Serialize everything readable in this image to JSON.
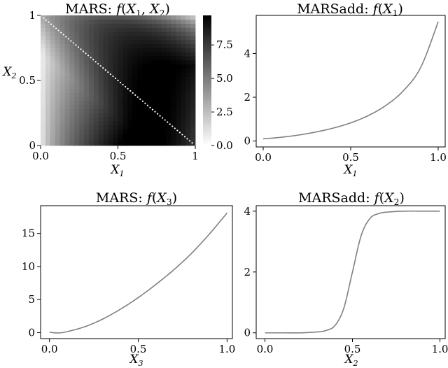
{
  "chart_data": [
    {
      "type": "heatmap",
      "title": "MARS: f(X1, X2)",
      "xlabel": "X1",
      "ylabel": "X2",
      "xlim": [
        0,
        1
      ],
      "ylim": [
        0,
        1
      ],
      "x_ticks": [
        0,
        0.5,
        1
      ],
      "x_tick_labels": [
        "0.0",
        "0.5",
        "1"
      ],
      "y_ticks": [
        0,
        0.5,
        1
      ],
      "y_tick_labels": [
        "0",
        "0.5",
        "1"
      ],
      "colormap": "gray_r",
      "colorbar": {
        "range": [
          0,
          9.7
        ],
        "ticks": [
          0,
          2.5,
          5,
          7.5
        ],
        "tick_labels": [
          "0.0",
          "2.5",
          "5.0",
          "7.5"
        ]
      },
      "grid": false,
      "annotation": "white dotted diagonal line from (0.02, 0.98) to (0.98, 0.02)"
    },
    {
      "type": "line",
      "title": "MARSadd: f(X1)",
      "xlabel": "X1",
      "ylabel": "",
      "xlim": [
        -0.04,
        1.04
      ],
      "ylim": [
        -0.27,
        5.74
      ],
      "x_ticks": [
        0,
        0.5,
        1
      ],
      "x_tick_labels": [
        "0.0",
        "0.5",
        "1.0"
      ],
      "y_ticks": [
        0,
        2,
        4
      ],
      "y_tick_labels": [
        "0",
        "2",
        "4"
      ],
      "color": "#808080",
      "grid": false,
      "x": [
        0,
        0.1,
        0.2,
        0.3,
        0.4,
        0.5,
        0.6,
        0.7,
        0.8,
        0.9,
        1.0
      ],
      "y": [
        0.1,
        0.17,
        0.27,
        0.41,
        0.59,
        0.83,
        1.16,
        1.62,
        2.29,
        3.36,
        5.45
      ]
    },
    {
      "type": "line",
      "title": "MARS: f(X3)",
      "xlabel": "X3",
      "ylabel": "",
      "xlim": [
        -0.05,
        1.03
      ],
      "ylim": [
        -0.91,
        19.2
      ],
      "x_ticks": [
        0,
        0.5,
        1
      ],
      "x_tick_labels": [
        "0.0",
        "0.5",
        "1.0"
      ],
      "y_ticks": [
        0,
        5,
        10,
        15
      ],
      "y_tick_labels": [
        "0",
        "5",
        "10",
        "15"
      ],
      "color": "#808080",
      "grid": false,
      "x": [
        0,
        0.05,
        0.1,
        0.2,
        0.3,
        0.4,
        0.5,
        0.6,
        0.7,
        0.8,
        0.9,
        1.0
      ],
      "y": [
        0.05,
        -0.05,
        0.15,
        0.9,
        2.05,
        3.55,
        5.3,
        7.3,
        9.5,
        12.0,
        14.9,
        18.1
      ]
    },
    {
      "type": "line",
      "title": "MARSadd: f(X2)",
      "xlabel": "X2",
      "ylabel": "",
      "xlim": [
        -0.05,
        1.03
      ],
      "ylim": [
        -0.19,
        4.18
      ],
      "x_ticks": [
        0,
        0.5,
        1
      ],
      "x_tick_labels": [
        "0.0",
        "0.5",
        "1.0"
      ],
      "y_ticks": [
        0,
        2,
        4
      ],
      "y_tick_labels": [
        "0",
        "2",
        "4"
      ],
      "color": "#808080",
      "grid": false,
      "x": [
        0,
        0.1,
        0.2,
        0.3,
        0.35,
        0.4,
        0.45,
        0.5,
        0.55,
        0.6,
        0.65,
        0.7,
        0.8,
        0.9,
        1.0
      ],
      "y": [
        0,
        0,
        0,
        0.03,
        0.08,
        0.24,
        0.8,
        2.0,
        3.2,
        3.76,
        3.92,
        3.97,
        4.0,
        4.0,
        4.0
      ]
    }
  ]
}
